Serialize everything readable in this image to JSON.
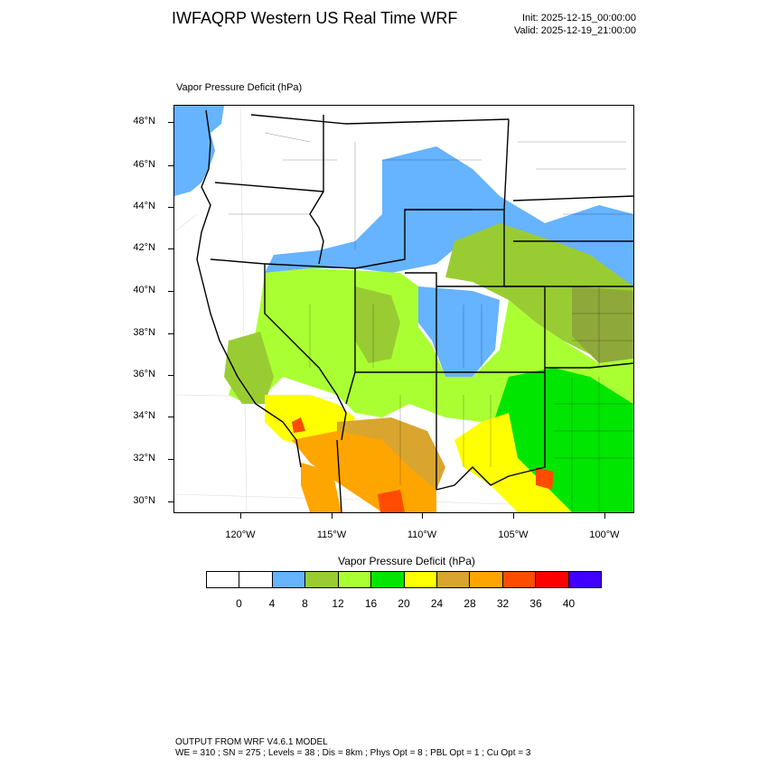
{
  "header": {
    "title": "IWFAQRP Western US Real Time WRF",
    "init": "Init: 2025-12-15_00:00:00",
    "valid": "Valid: 2025-12-19_21:00:00"
  },
  "map": {
    "field_title": "Vapor Pressure Deficit   (hPa)",
    "lat_labels": [
      "48°N",
      "46°N",
      "44°N",
      "42°N",
      "40°N",
      "38°N",
      "36°N",
      "34°N",
      "32°N",
      "30°N"
    ],
    "lon_labels": [
      "120°W",
      "115°W",
      "110°W",
      "105°W",
      "100°W"
    ]
  },
  "legend": {
    "title": "Vapor Pressure Deficit  (hPa)",
    "labels": [
      "0",
      "4",
      "8",
      "12",
      "16",
      "20",
      "24",
      "28",
      "32",
      "36",
      "40"
    ],
    "colors": [
      "#ffffff",
      "#ffffff",
      "#66b3ff",
      "#99cc33",
      "#aaff33",
      "#00e600",
      "#ffff00",
      "#d9a52e",
      "#ffa500",
      "#ff4c00",
      "#ff0000",
      "#4000ff"
    ]
  },
  "footer": {
    "line1": "OUTPUT FROM WRF V4.6.1 MODEL",
    "line2": "WE = 310 ; SN = 275 ; Levels = 38 ; Dis = 8km ; Phys Opt = 8 ; PBL Opt = 1 ; Cu Opt = 3"
  }
}
